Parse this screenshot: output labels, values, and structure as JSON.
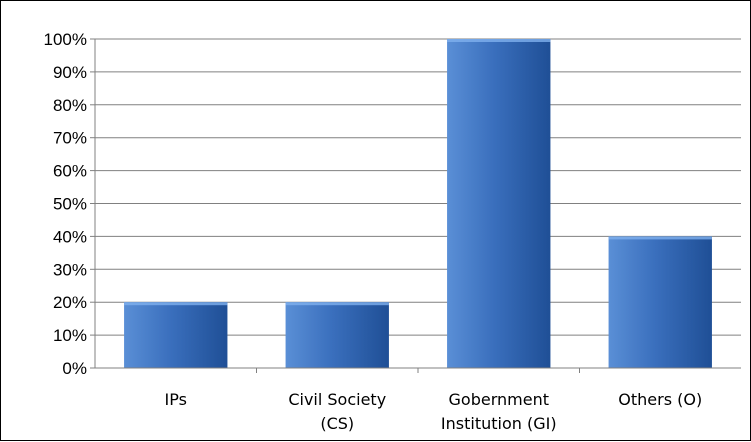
{
  "chart_data": {
    "type": "bar",
    "categories": [
      [
        "IPs"
      ],
      [
        "Civil Society",
        "(CS)"
      ],
      [
        "Gobernment",
        "Institution (GI)"
      ],
      [
        "Others (O)"
      ]
    ],
    "values": [
      0.2,
      0.2,
      1.0,
      0.4
    ],
    "yticks": [
      "0%",
      "10%",
      "20%",
      "30%",
      "40%",
      "50%",
      "60%",
      "70%",
      "80%",
      "90%",
      "100%"
    ],
    "ylim": [
      0,
      1
    ],
    "grid": true,
    "legend": "none",
    "colors": {
      "bar_light": "#5a8fd6",
      "bar_mid": "#3a6fbd",
      "bar_dark": "#1f4f96",
      "grid": "#808080"
    }
  }
}
